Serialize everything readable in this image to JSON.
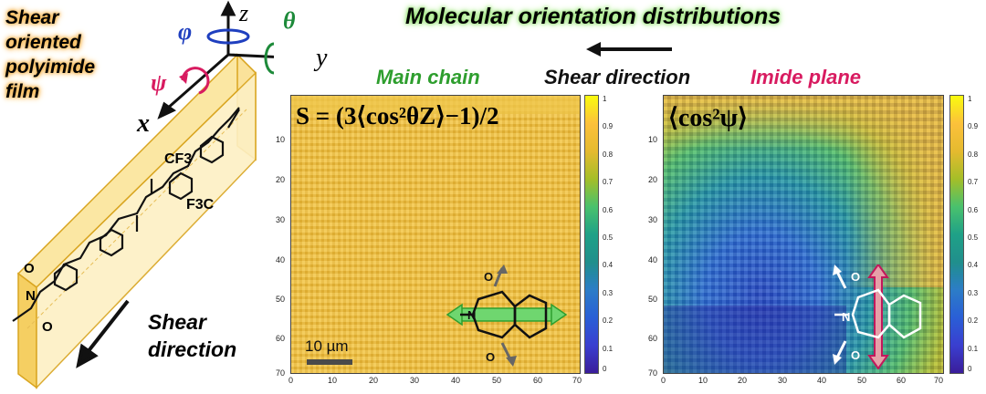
{
  "film_label": [
    "Shear",
    "oriented",
    "polyimide",
    "film"
  ],
  "axes": {
    "z": "z",
    "y": "y",
    "x": "x",
    "phi": "φ",
    "theta": "θ",
    "psi": "ψ"
  },
  "molecule_labels": {
    "cf3_top": "CF3",
    "cf3_bottom": "F3C",
    "o": "O",
    "n": "N"
  },
  "shear_left": [
    "Shear",
    "direction"
  ],
  "title": "Molecular orientation distributions",
  "shear_top": "Shear direction",
  "panel_left": {
    "label": "Main chain",
    "equation": "S = (3⟨cos²θZ⟩−1)/2",
    "scale_bar": "10 µm"
  },
  "panel_right": {
    "label": "Imide plane",
    "equation": "⟨cos²ψ⟩"
  },
  "map_axis": {
    "x_ticks": [
      "0",
      "10",
      "20",
      "30",
      "40",
      "50",
      "60",
      "70"
    ],
    "y_ticks": [
      "10",
      "20",
      "30",
      "40",
      "50",
      "60",
      "70"
    ]
  },
  "colorbar_ticks": [
    "1",
    "0.9",
    "0.8",
    "0.7",
    "0.6",
    "0.5",
    "0.4",
    "0.3",
    "0.2",
    "0.1",
    "0"
  ],
  "colors": {
    "film": "#f7d774",
    "film_edge": "#d9a520",
    "main_chain": "#2e9e2e",
    "imide": "#d81b60",
    "map_yellow": "#e8b83a"
  }
}
